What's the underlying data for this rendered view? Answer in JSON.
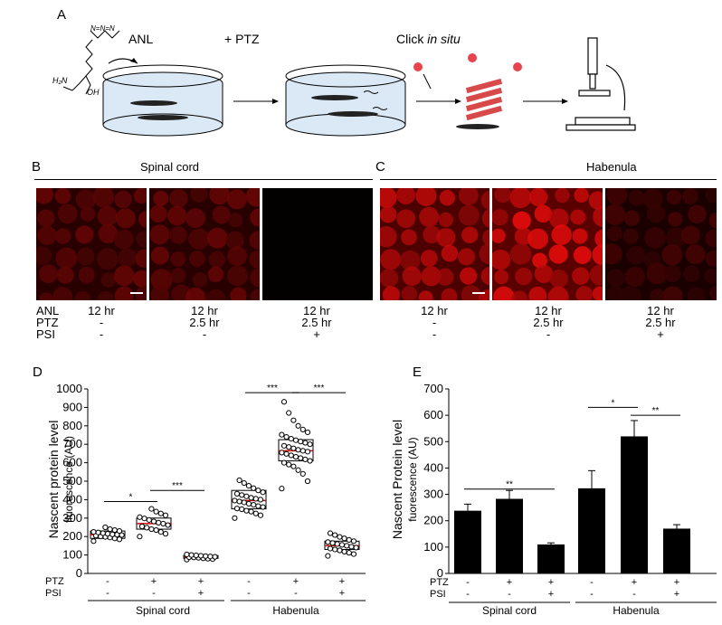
{
  "panel_labels": {
    "a": "A",
    "b": "B",
    "c": "C",
    "d": "D",
    "e": "E"
  },
  "schematic": {
    "anl": "ANL",
    "ptz": "+ PTZ",
    "click_prefix": "Click ",
    "click_italic": "in situ",
    "azide": "N=N=N",
    "amine": "H₂N",
    "hydroxyl": "OH"
  },
  "images": {
    "region_b": "Spinal cord",
    "region_c": "Habenula",
    "conditions_b": {
      "labels": [
        "ANL",
        "PTZ",
        "PSI"
      ],
      "columns": [
        [
          "12 hr",
          "-",
          "-"
        ],
        [
          "12  hr",
          "2.5 hr",
          "-"
        ],
        [
          "12  hr",
          "2.5 hr",
          "+"
        ]
      ]
    },
    "conditions_c": {
      "columns": [
        [
          "12 hr",
          "-",
          "-"
        ],
        [
          "12  hr",
          "2.5 hr",
          "-"
        ],
        [
          "12  hr",
          "2.5 hr",
          "+"
        ]
      ]
    },
    "colors": {
      "dim": "#3a0000",
      "bright": "#c80000",
      "none": "#0a0000"
    }
  },
  "chart_data": [
    {
      "type": "scatter",
      "panel": "D",
      "ylabel": "Nascent protein level",
      "ylabel2": "fluorescence (AU)",
      "ylim": [
        0,
        1000
      ],
      "yticks": [
        0,
        100,
        200,
        300,
        400,
        500,
        600,
        700,
        800,
        900,
        1000
      ],
      "row_labels": [
        "PTZ",
        "PSI"
      ],
      "groups": [
        {
          "ptz": "-",
          "psi": "-",
          "region": "Spinal cord",
          "median": 210,
          "q1": 190,
          "q3": 230,
          "points": [
            175,
            185,
            190,
            195,
            198,
            200,
            205,
            208,
            210,
            212,
            215,
            218,
            222,
            225,
            230,
            235,
            240,
            250
          ]
        },
        {
          "ptz": "+",
          "psi": "-",
          "region": "Spinal cord",
          "median": 270,
          "q1": 240,
          "q3": 300,
          "points": [
            200,
            215,
            225,
            235,
            240,
            248,
            255,
            262,
            270,
            275,
            282,
            290,
            298,
            305,
            315,
            325,
            335,
            350
          ]
        },
        {
          "ptz": "+",
          "psi": "+",
          "region": "Spinal cord",
          "median": 90,
          "q1": 82,
          "q3": 97,
          "points": [
            75,
            78,
            80,
            82,
            85,
            87,
            88,
            90,
            92,
            94,
            96,
            98,
            100,
            103
          ]
        },
        {
          "ptz": "-",
          "psi": "-",
          "region": "Habenula",
          "median": 395,
          "q1": 350,
          "q3": 450,
          "points": [
            300,
            315,
            325,
            335,
            340,
            348,
            352,
            360,
            365,
            372,
            378,
            385,
            390,
            395,
            400,
            405,
            410,
            418,
            425,
            432,
            440,
            450,
            462,
            475,
            490,
            505
          ]
        },
        {
          "ptz": "+",
          "psi": "-",
          "region": "Habenula",
          "median": 665,
          "q1": 610,
          "q3": 725,
          "points": [
            460,
            500,
            540,
            560,
            580,
            590,
            600,
            610,
            618,
            625,
            632,
            640,
            648,
            655,
            660,
            665,
            670,
            678,
            685,
            692,
            700,
            708,
            715,
            722,
            730,
            740,
            752,
            765,
            780,
            800,
            830,
            870,
            930
          ]
        },
        {
          "ptz": "+",
          "psi": "+",
          "region": "Habenula",
          "median": 150,
          "q1": 130,
          "q3": 175,
          "points": [
            95,
            105,
            112,
            118,
            125,
            130,
            135,
            140,
            145,
            150,
            155,
            160,
            165,
            170,
            175,
            182,
            190,
            198,
            208,
            218
          ]
        }
      ],
      "significance": [
        {
          "label": "*",
          "from": 0,
          "to": 1,
          "y": 390
        },
        {
          "label": "***",
          "from": 1,
          "to": 2,
          "y": 450
        },
        {
          "label": "***",
          "from": 3,
          "to": 4,
          "y": 980
        },
        {
          "label": "***",
          "from": 4,
          "to": 5,
          "y": 980
        }
      ],
      "region_labels": [
        "Spinal cord",
        "Habenula"
      ],
      "colors": {
        "median": "#d40000",
        "box": "#000000"
      }
    },
    {
      "type": "bar",
      "panel": "E",
      "ylabel": "Nascent Protein level",
      "ylabel2": "fuorescence (AU)",
      "ylim": [
        0,
        700
      ],
      "yticks": [
        0,
        100,
        200,
        300,
        400,
        500,
        600,
        700
      ],
      "row_labels": [
        "PTZ",
        "PSI"
      ],
      "groups": [
        {
          "ptz": "-",
          "psi": "-",
          "region": "Spinal cord",
          "value": 238,
          "error": 25
        },
        {
          "ptz": "+",
          "psi": "-",
          "region": "Spinal cord",
          "value": 283,
          "error": 32
        },
        {
          "ptz": "+",
          "psi": "+",
          "region": "Spinal cord",
          "value": 110,
          "error": 6
        },
        {
          "ptz": "-",
          "psi": "-",
          "region": "Habenula",
          "value": 323,
          "error": 67
        },
        {
          "ptz": "+",
          "psi": "-",
          "region": "Habenula",
          "value": 520,
          "error": 60
        },
        {
          "ptz": "+",
          "psi": "+",
          "region": "Habenula",
          "value": 170,
          "error": 15
        }
      ],
      "significance": [
        {
          "label": "**",
          "from": 0,
          "to": 2,
          "y": 320
        },
        {
          "label": "*",
          "from": 3,
          "to": 4,
          "y": 630
        },
        {
          "label": "**",
          "from": 4,
          "to": 5,
          "y": 600
        }
      ],
      "region_labels": [
        "Spinal cord",
        "Habenula"
      ]
    }
  ]
}
